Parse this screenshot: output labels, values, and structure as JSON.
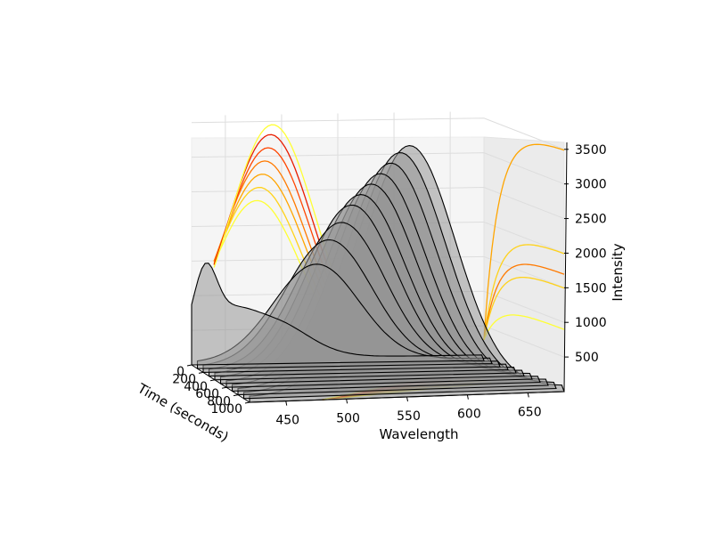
{
  "chart_data": {
    "type": "surface3d",
    "title": "",
    "xlabel": "Wavelength",
    "ylabel": "Time (seconds)",
    "zlabel": "Intensity",
    "x_ticks": [
      "450",
      "500",
      "550",
      "600",
      "650"
    ],
    "y_ticks": [
      "0",
      "200",
      "400",
      "600",
      "800",
      "1000"
    ],
    "z_ticks": [
      "500",
      "1000",
      "1500",
      "2000",
      "2500",
      "3000",
      "3500"
    ],
    "xlim": [
      420,
      680
    ],
    "ylim": [
      0,
      1000
    ],
    "zlim": [
      0,
      3600
    ],
    "slices": [
      {
        "time": 0,
        "peak_wavelength": 470,
        "peak_intensity": 900
      },
      {
        "time": 100,
        "peak_wavelength": 525,
        "peak_intensity": 1400
      },
      {
        "time": 200,
        "peak_wavelength": 530,
        "peak_intensity": 1800
      },
      {
        "time": 300,
        "peak_wavelength": 535,
        "peak_intensity": 2100
      },
      {
        "time": 400,
        "peak_wavelength": 538,
        "peak_intensity": 2400
      },
      {
        "time": 500,
        "peak_wavelength": 540,
        "peak_intensity": 2600
      },
      {
        "time": 600,
        "peak_wavelength": 543,
        "peak_intensity": 2800
      },
      {
        "time": 700,
        "peak_wavelength": 545,
        "peak_intensity": 3000
      },
      {
        "time": 800,
        "peak_wavelength": 548,
        "peak_intensity": 3200
      },
      {
        "time": 900,
        "peak_wavelength": 550,
        "peak_intensity": 3400
      },
      {
        "time": 1000,
        "peak_wavelength": 552,
        "peak_intensity": 3550
      }
    ],
    "contour_colors": [
      "#ffff33",
      "#ffd21a",
      "#ffa500",
      "#ff7a00",
      "#ff4500",
      "#e81d00"
    ],
    "grid": true
  }
}
